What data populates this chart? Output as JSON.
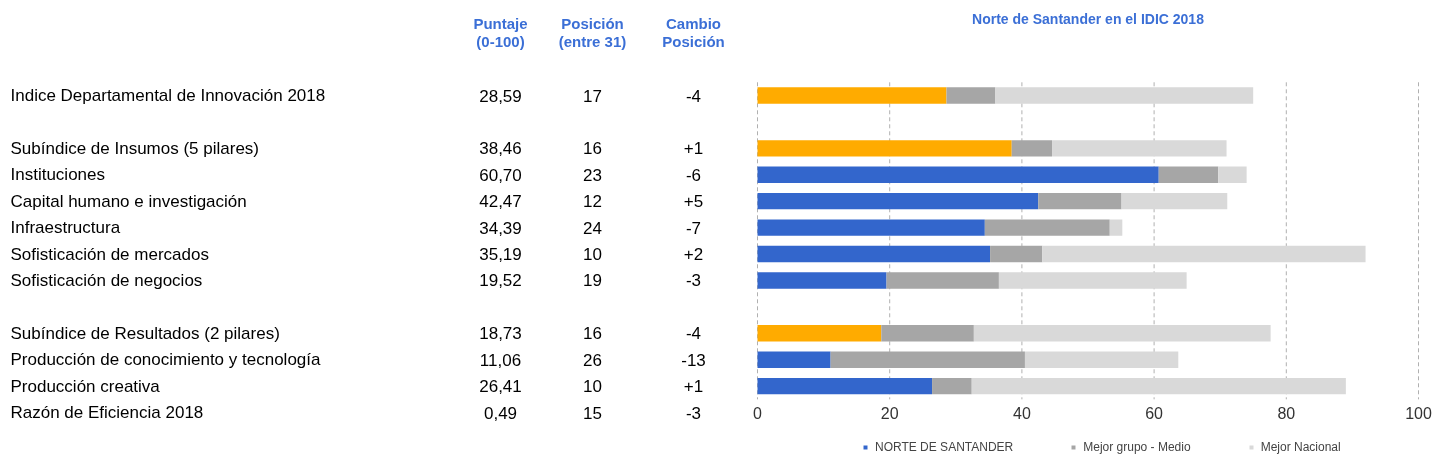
{
  "chart_data": [
    {
      "type": "other",
      "categories": [
        "Indice Departamental de Innovación 2018",
        null,
        "Subíndice de Insumos (5 pilares)",
        "Instituciones",
        "Capital humano e investigación",
        "Infraestructura",
        "Sofisticación de mercados",
        "Sofisticación de negocios",
        null,
        "Subíndice de Resultados (2 pilares)",
        "Producción de conocimiento y tecnología",
        "Producción creativa",
        "Razón de Eficiencia 2018"
      ],
      "series": [
        {
          "name": "Puntaje\n(0-100)",
          "color": "#3b6fd6",
          "values": [
            28.59,
            null,
            38.46,
            60.7,
            42.47,
            34.39,
            35.19,
            19.52,
            null,
            18.73,
            11.06,
            26.41,
            0.49
          ],
          "value_labels": [
            "28,59",
            null,
            "38,46",
            "60,70",
            "42,47",
            "34,39",
            "35,19",
            "19,52",
            null,
            "18,73",
            "11,06",
            "26,41",
            "0,49"
          ]
        },
        {
          "name": "Posición\n(entre 31)",
          "color": "#3b6fd6",
          "values": [
            17,
            null,
            16,
            23,
            12,
            24,
            10,
            19,
            null,
            16,
            26,
            10,
            15
          ],
          "value_labels": [
            "17",
            null,
            "16",
            "23",
            "12",
            "24",
            "10",
            "19",
            null,
            "16",
            "26",
            "10",
            "15"
          ]
        },
        {
          "name": "Cambio\nPosición",
          "color": "#3b6fd6",
          "values": [
            -4,
            null,
            1,
            -6,
            5,
            -7,
            2,
            -3,
            null,
            -4,
            -13,
            1,
            -3
          ],
          "value_labels": [
            "-4",
            null,
            "+1",
            "-6",
            "+5",
            "-7",
            "+2",
            "-3",
            null,
            "-4",
            "-13",
            "+1",
            "-3"
          ]
        }
      ]
    },
    {
      "type": "bar",
      "orientation": "horizontal",
      "stacked": true,
      "title": "Norte de Santander en el IDIC 2018",
      "categories": [
        null,
        null,
        null,
        null,
        null,
        null,
        null,
        null,
        null,
        null,
        null,
        null
      ],
      "series": [
        {
          "name": "NORTE DE SANTANDER",
          "color": "#3366cc",
          "colors": [
            "#ffab00",
            null,
            "#ffab00",
            "#3366cc",
            "#3366cc",
            "#3366cc",
            "#3366cc",
            "#3366cc",
            null,
            "#ffab00",
            "#3366cc",
            "#3366cc"
          ],
          "values": [
            28.59,
            null,
            38.46,
            60.7,
            42.47,
            34.39,
            35.19,
            19.52,
            null,
            18.73,
            11.06,
            26.41
          ]
        },
        {
          "name": "Mejor grupo - Medio",
          "color": "#a6a6a6",
          "values": [
            7.4,
            null,
            6.1,
            9.0,
            12.6,
            18.9,
            7.9,
            17.0,
            null,
            14.0,
            29.4,
            6.0
          ]
        },
        {
          "name": "Mejor Nacional",
          "color": "#d9d9d9",
          "values": [
            39.0,
            null,
            26.4,
            4.3,
            16.0,
            1.9,
            48.9,
            28.4,
            null,
            44.9,
            23.2,
            56.6
          ]
        }
      ],
      "xlim": [
        0,
        100
      ],
      "xticks": [
        0,
        20,
        40,
        60,
        80,
        100
      ],
      "grid": "x",
      "legend": "bottom"
    }
  ]
}
